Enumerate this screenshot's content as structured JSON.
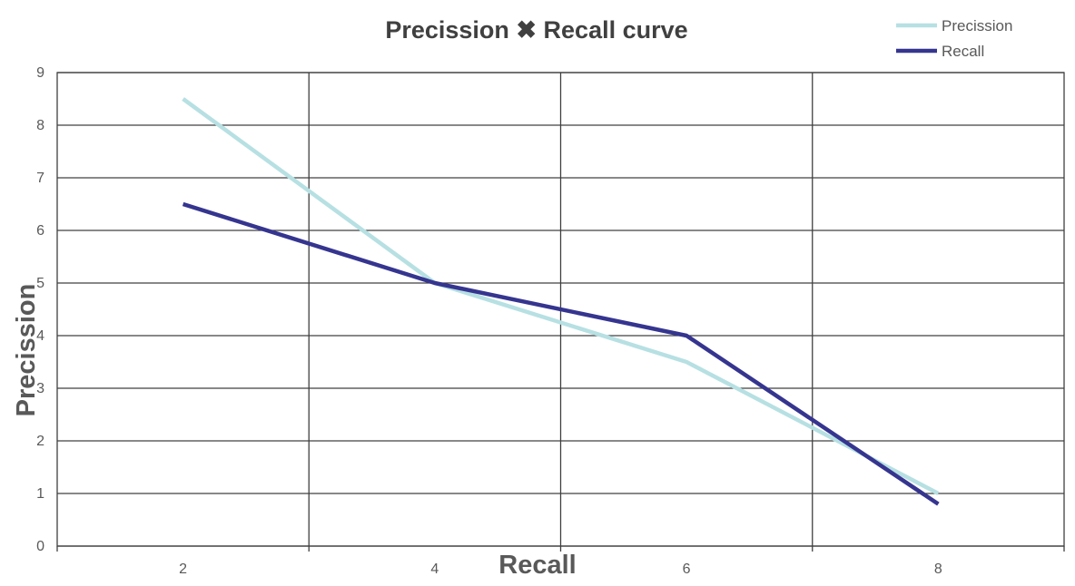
{
  "chart_data": {
    "type": "line",
    "title": "Precission ✖ Recall curve",
    "xlabel": "Recall",
    "ylabel": "Precission",
    "x": [
      2,
      4,
      6,
      8
    ],
    "xlim": [
      1,
      9
    ],
    "ylim": [
      0,
      9
    ],
    "x_ticks": [
      "2",
      "4",
      "6",
      "8"
    ],
    "y_ticks": [
      "0",
      "1",
      "2",
      "3",
      "4",
      "5",
      "6",
      "7",
      "8",
      "9"
    ],
    "grid": true,
    "legend_position": "top-right",
    "series": [
      {
        "name": "Precission",
        "color": "#b7e0e3",
        "values": [
          8.5,
          5.0,
          3.5,
          1.0
        ]
      },
      {
        "name": "Recall",
        "color": "#353590",
        "values": [
          6.5,
          5.0,
          4.0,
          0.8
        ]
      }
    ]
  }
}
